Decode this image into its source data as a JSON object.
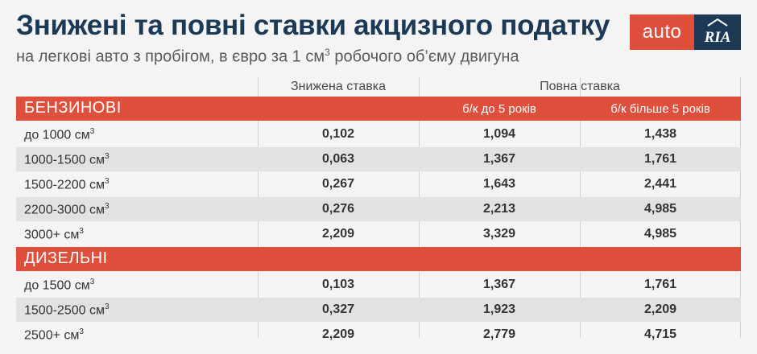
{
  "title": "Знижені та повні ставки акцизного податку",
  "subtitle_main": "на легкові авто з пробігом, в євро за 1 см",
  "subtitle_sup": "3",
  "subtitle_end": " робочого об’єму двигуна",
  "logo": {
    "left": "auto",
    "right": "RIA",
    "colors": {
      "red": "#df4f3c",
      "navy": "#1c3a55"
    }
  },
  "headers": {
    "reduced": "Знижена ставка",
    "full": "Повна ставка",
    "full_under5": "б/к до 5 років",
    "full_over5": "б/к більше 5 років"
  },
  "sections": [
    {
      "name": "БЕНЗИНОВІ",
      "rows": [
        {
          "label": "до 1000 см",
          "sup": "3",
          "reduced": "0,102",
          "under5": "1,094",
          "over5": "1,438"
        },
        {
          "label": "1000-1500 см",
          "sup": "3",
          "reduced": "0,063",
          "under5": "1,367",
          "over5": "1,761"
        },
        {
          "label": "1500-2200 см",
          "sup": "3",
          "reduced": "0,267",
          "under5": "1,643",
          "over5": "2,441"
        },
        {
          "label": "2200-3000 см",
          "sup": "3",
          "reduced": "0,276",
          "under5": "2,213",
          "over5": "4,985"
        },
        {
          "label": "3000+ см",
          "sup": "3",
          "reduced": "2,209",
          "under5": "3,329",
          "over5": "4,985"
        }
      ]
    },
    {
      "name": "ДИЗЕЛЬНІ",
      "rows": [
        {
          "label": "до 1500 см",
          "sup": "3",
          "reduced": "0,103",
          "under5": "1,367",
          "over5": "1,761"
        },
        {
          "label": "1500-2500 см",
          "sup": "3",
          "reduced": "0,327",
          "under5": "1,923",
          "over5": "2,209"
        },
        {
          "label": "2500+ см",
          "sup": "3",
          "reduced": "2,209",
          "under5": "2,779",
          "over5": "4,715"
        }
      ]
    }
  ]
}
